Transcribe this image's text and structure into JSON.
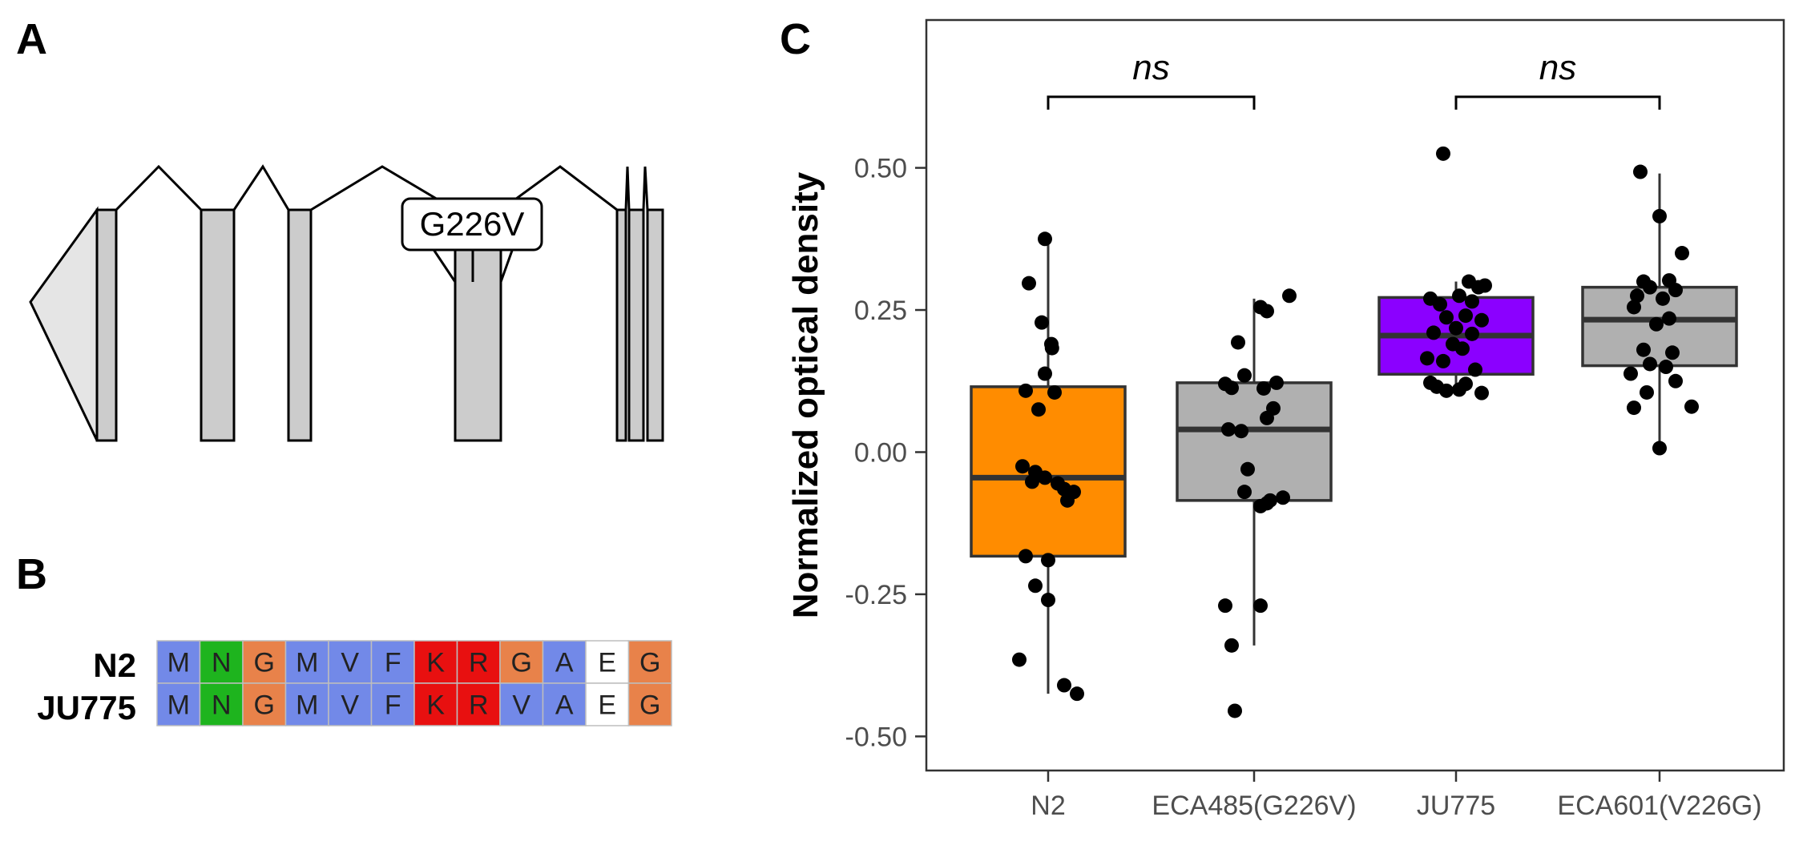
{
  "panels": {
    "a": "A",
    "b": "B",
    "c": "C"
  },
  "gene_model": {
    "exon_count": 8,
    "variant_label": "G226V",
    "exon_fill": "#cccccc",
    "utr_fill": "#e5e5e5"
  },
  "alignment": {
    "rows": [
      {
        "name": "N2",
        "residues": [
          "M",
          "N",
          "G",
          "M",
          "V",
          "F",
          "K",
          "R",
          "G",
          "A",
          "E",
          "G"
        ]
      },
      {
        "name": "JU775",
        "residues": [
          "M",
          "N",
          "G",
          "M",
          "V",
          "F",
          "K",
          "R",
          "V",
          "A",
          "E",
          "G"
        ]
      }
    ],
    "colors": {
      "M": "#7289e8",
      "V": "#7289e8",
      "F": "#7289e8",
      "A": "#7289e8",
      "N": "#1eb41e",
      "G": "#e8824a",
      "K": "#e81010",
      "R": "#e81010",
      "E": "#ffffff"
    }
  },
  "chart_data": {
    "type": "boxplot",
    "ylabel": "Normalized optical density",
    "ylim": [
      -0.56,
      0.76
    ],
    "yticks": [
      "-0.50",
      "-0.25",
      "0.00",
      "0.25",
      "0.50"
    ],
    "categories": [
      "N2",
      "ECA485(G226V)",
      "JU775",
      "ECA601(V226G)"
    ],
    "colors": [
      "#ff8c00",
      "#b0b0b0",
      "#8b00ff",
      "#b0b0b0"
    ],
    "boxes": [
      {
        "q1": -0.183,
        "median": -0.045,
        "q3": 0.115,
        "whisker_low": -0.425,
        "whisker_high": 0.372
      },
      {
        "q1": -0.085,
        "median": 0.04,
        "q3": 0.122,
        "whisker_low": -0.34,
        "whisker_high": 0.27
      },
      {
        "q1": 0.137,
        "median": 0.205,
        "q3": 0.272,
        "whisker_low": 0.105,
        "whisker_high": 0.3
      },
      {
        "q1": 0.152,
        "median": 0.233,
        "q3": 0.29,
        "whisker_low": 0.007,
        "whisker_high": 0.49
      }
    ],
    "points": [
      [
        [
          -0.01,
          0.375
        ],
        [
          -0.06,
          0.297
        ],
        [
          -0.02,
          0.228
        ],
        [
          0.01,
          0.19
        ],
        [
          0.012,
          0.183
        ],
        [
          -0.01,
          0.138
        ],
        [
          -0.07,
          0.108
        ],
        [
          0.02,
          0.105
        ],
        [
          -0.03,
          0.075
        ],
        [
          -0.08,
          -0.025
        ],
        [
          -0.04,
          -0.035
        ],
        [
          -0.05,
          -0.052
        ],
        [
          0.03,
          -0.055
        ],
        [
          0.05,
          -0.065
        ],
        [
          0.06,
          -0.085
        ],
        [
          -0.01,
          -0.045
        ],
        [
          0.08,
          -0.07
        ],
        [
          -0.07,
          -0.183
        ],
        [
          0.0,
          -0.19
        ],
        [
          -0.04,
          -0.235
        ],
        [
          0.0,
          -0.26
        ],
        [
          -0.09,
          -0.365
        ],
        [
          0.05,
          -0.41
        ],
        [
          0.09,
          -0.425
        ]
      ],
      [
        [
          0.11,
          0.275
        ],
        [
          0.02,
          0.255
        ],
        [
          0.04,
          0.248
        ],
        [
          -0.05,
          0.193
        ],
        [
          -0.03,
          0.135
        ],
        [
          -0.09,
          0.12
        ],
        [
          0.07,
          0.122
        ],
        [
          -0.07,
          0.113
        ],
        [
          0.03,
          0.112
        ],
        [
          0.06,
          0.077
        ],
        [
          0.04,
          0.06
        ],
        [
          -0.08,
          0.04
        ],
        [
          -0.04,
          0.037
        ],
        [
          -0.02,
          -0.03
        ],
        [
          -0.03,
          -0.07
        ],
        [
          0.05,
          -0.085
        ],
        [
          0.09,
          -0.08
        ],
        [
          0.02,
          -0.095
        ],
        [
          0.04,
          -0.09
        ],
        [
          -0.09,
          -0.27
        ],
        [
          0.02,
          -0.27
        ],
        [
          -0.07,
          -0.34
        ],
        [
          -0.06,
          -0.455
        ]
      ],
      [
        [
          -0.04,
          0.525
        ],
        [
          0.04,
          0.3
        ],
        [
          0.07,
          0.29
        ],
        [
          0.09,
          0.293
        ],
        [
          0.01,
          0.275
        ],
        [
          -0.08,
          0.27
        ],
        [
          0.05,
          0.265
        ],
        [
          -0.05,
          0.26
        ],
        [
          0.03,
          0.24
        ],
        [
          -0.03,
          0.237
        ],
        [
          0.08,
          0.232
        ],
        [
          0.0,
          0.218
        ],
        [
          -0.07,
          0.21
        ],
        [
          0.05,
          0.208
        ],
        [
          -0.01,
          0.19
        ],
        [
          0.02,
          0.182
        ],
        [
          -0.09,
          0.165
        ],
        [
          -0.04,
          0.16
        ],
        [
          0.06,
          0.145
        ],
        [
          -0.08,
          0.122
        ],
        [
          0.03,
          0.12
        ],
        [
          -0.06,
          0.115
        ],
        [
          0.01,
          0.11
        ],
        [
          -0.03,
          0.108
        ],
        [
          0.08,
          0.104
        ]
      ],
      [
        [
          -0.06,
          0.493
        ],
        [
          0.0,
          0.415
        ],
        [
          0.07,
          0.35
        ],
        [
          -0.05,
          0.3
        ],
        [
          0.03,
          0.302
        ],
        [
          -0.03,
          0.29
        ],
        [
          0.05,
          0.285
        ],
        [
          -0.07,
          0.275
        ],
        [
          0.01,
          0.27
        ],
        [
          -0.08,
          0.255
        ],
        [
          0.03,
          0.235
        ],
        [
          -0.01,
          0.225
        ],
        [
          -0.05,
          0.18
        ],
        [
          0.04,
          0.175
        ],
        [
          -0.03,
          0.155
        ],
        [
          0.02,
          0.15
        ],
        [
          -0.09,
          0.138
        ],
        [
          0.05,
          0.125
        ],
        [
          -0.04,
          0.105
        ],
        [
          0.1,
          0.08
        ],
        [
          -0.08,
          0.078
        ],
        [
          0.0,
          0.007
        ]
      ]
    ],
    "annotations": [
      {
        "from": 0,
        "to": 1,
        "label": "ns",
        "y": 0.625
      },
      {
        "from": 2,
        "to": 3,
        "label": "ns",
        "y": 0.625
      }
    ]
  }
}
